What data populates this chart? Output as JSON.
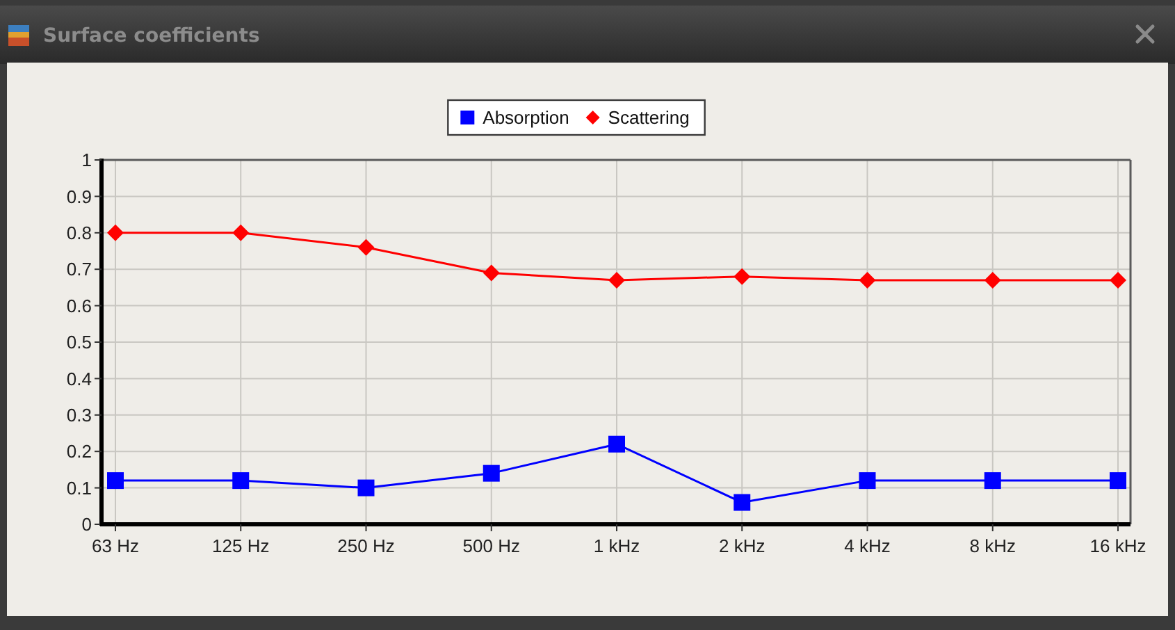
{
  "chart_data": {
    "type": "line",
    "title": "Surface coefficients",
    "categories": [
      "63 Hz",
      "125 Hz",
      "250 Hz",
      "500 Hz",
      "1 kHz",
      "2 kHz",
      "4 kHz",
      "8 kHz",
      "16 kHz"
    ],
    "series": [
      {
        "name": "Absorption",
        "color": "#0000ff",
        "marker": "square",
        "values": [
          0.12,
          0.12,
          0.1,
          0.14,
          0.22,
          0.06,
          0.12,
          0.12,
          0.12
        ]
      },
      {
        "name": "Scattering",
        "color": "#ff0000",
        "marker": "diamond",
        "values": [
          0.8,
          0.8,
          0.76,
          0.69,
          0.67,
          0.68,
          0.67,
          0.67,
          0.67
        ]
      }
    ],
    "ylim": [
      0,
      1
    ],
    "yticks": [
      0,
      0.1,
      0.2,
      0.3,
      0.4,
      0.5,
      0.6,
      0.7,
      0.8,
      0.9,
      1
    ],
    "grid": true,
    "legend": "top"
  }
}
